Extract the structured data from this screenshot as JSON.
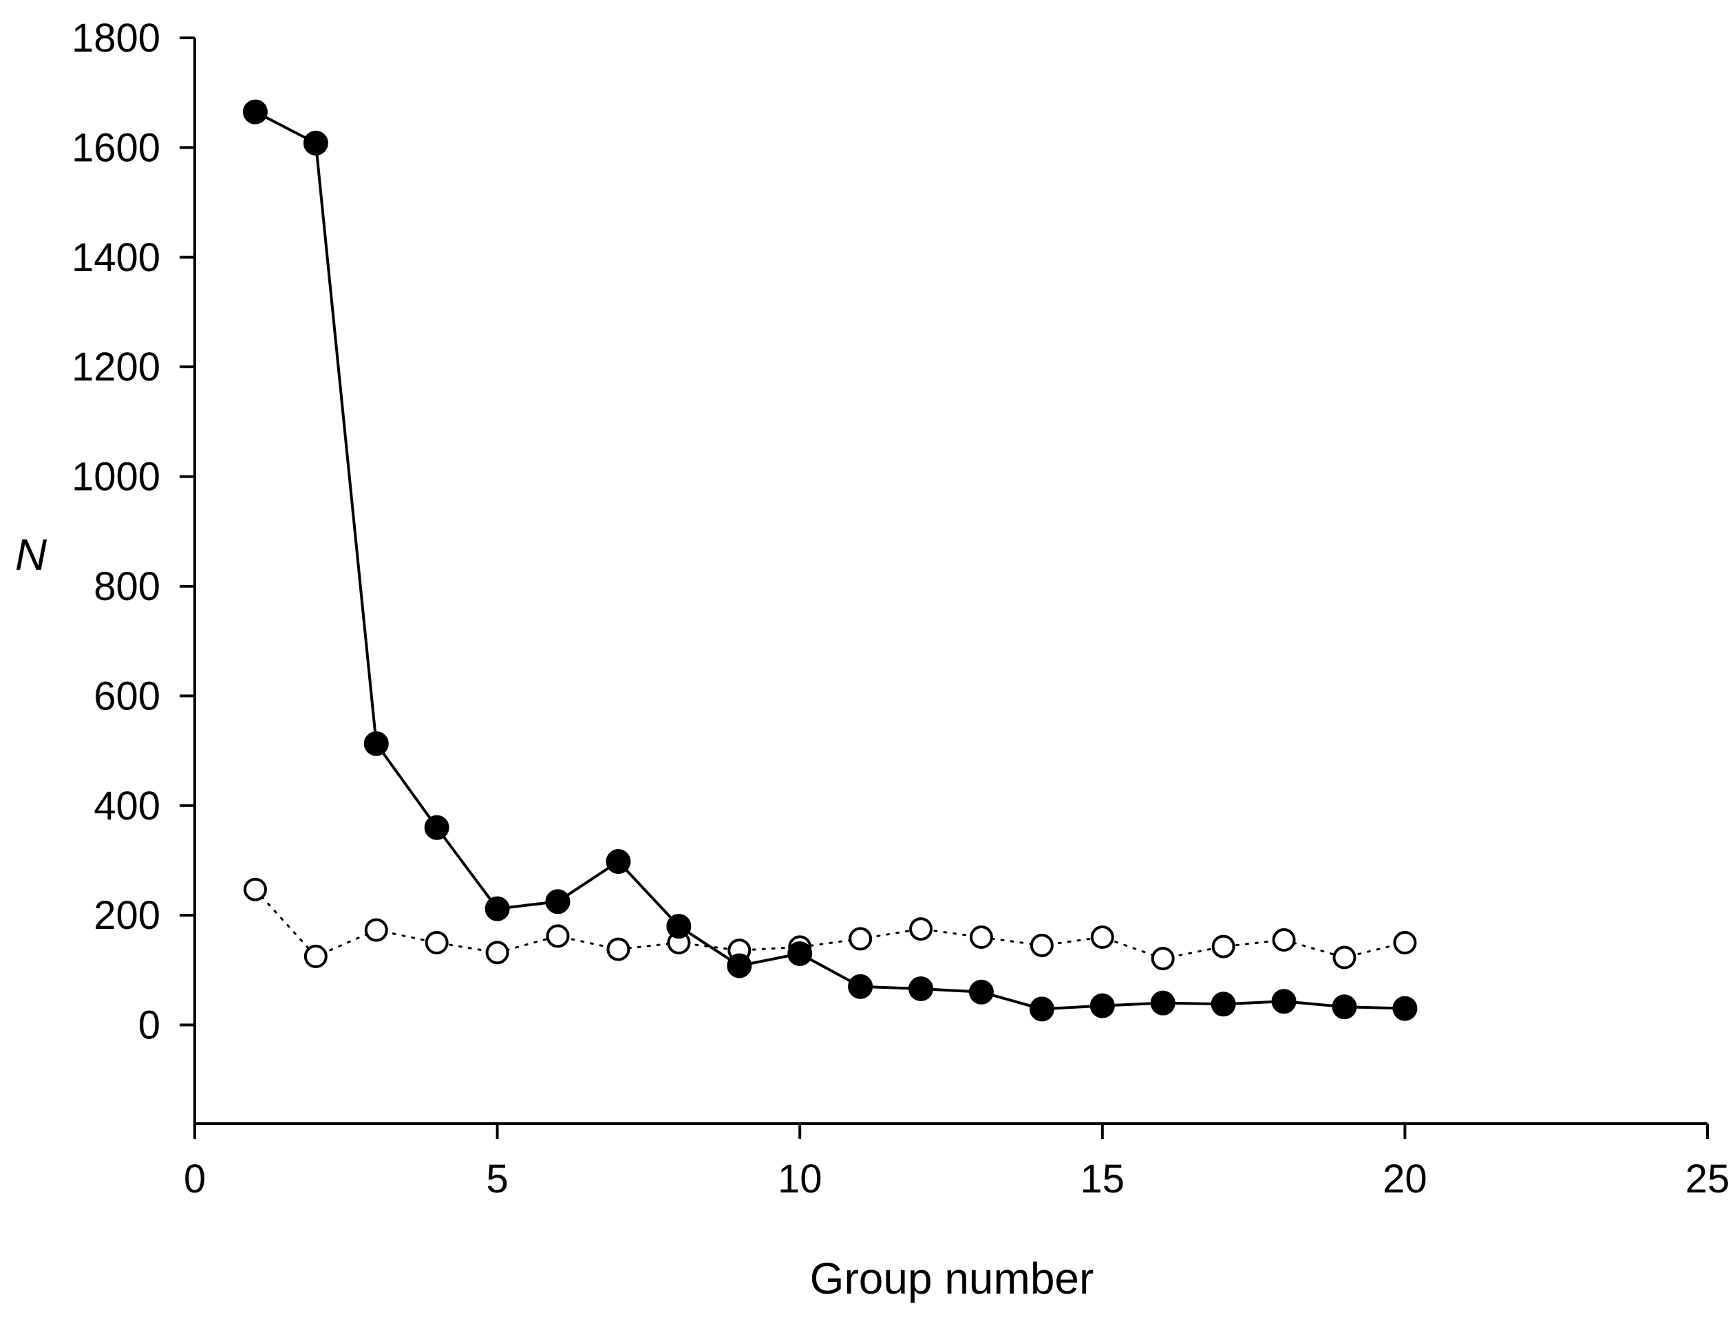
{
  "chart_data": {
    "type": "line",
    "xlabel": "Group number",
    "ylabel": "N",
    "xlim": [
      0,
      25
    ],
    "ylim": [
      -180,
      1800
    ],
    "xticks": [
      0,
      5,
      10,
      15,
      20,
      25
    ],
    "yticks": [
      0,
      200,
      400,
      600,
      800,
      1000,
      1200,
      1400,
      1600,
      1800
    ],
    "grid": false,
    "legend": "none",
    "series": [
      {
        "marker": "filled-circle",
        "line_style": "solid",
        "color": "#000000",
        "x": [
          1,
          2,
          3,
          4,
          5,
          6,
          7,
          8,
          9,
          10,
          11,
          12,
          13,
          14,
          15,
          16,
          17,
          18,
          19,
          20
        ],
        "values": [
          1665,
          1608,
          513,
          360,
          212,
          225,
          298,
          180,
          108,
          130,
          70,
          66,
          60,
          29,
          35,
          40,
          38,
          43,
          33,
          30
        ]
      },
      {
        "marker": "open-circle",
        "line_style": "dotted",
        "color": "#000000",
        "x": [
          1,
          2,
          3,
          4,
          5,
          6,
          7,
          8,
          9,
          10,
          11,
          12,
          13,
          14,
          15,
          16,
          17,
          18,
          19,
          20
        ],
        "values": [
          247,
          125,
          173,
          150,
          132,
          162,
          138,
          150,
          136,
          142,
          157,
          175,
          160,
          145,
          160,
          121,
          143,
          155,
          123,
          150
        ]
      }
    ]
  }
}
